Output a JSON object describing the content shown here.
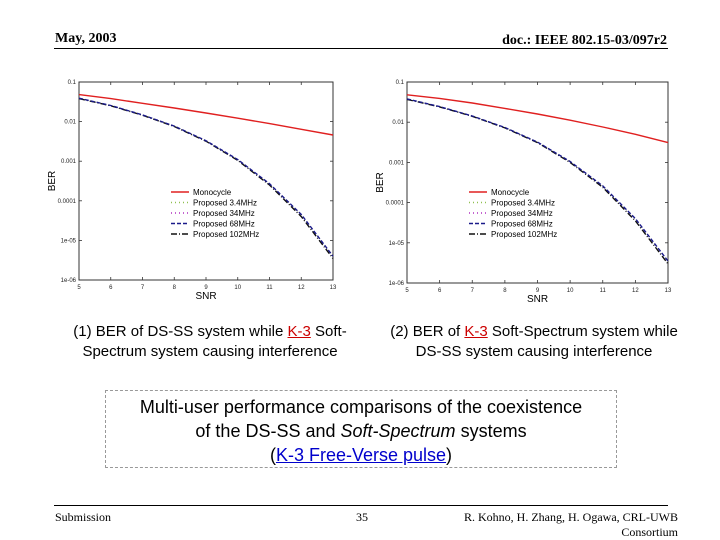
{
  "header": {
    "date": "May, 2003",
    "doc": "doc.: IEEE 802.15-03/097r2"
  },
  "captions": [
    {
      "num": "(1) BER of DS-SS system while ",
      "ref": "K-3",
      "rest_line1": " Soft-",
      "line2": "Spectrum system causing interference"
    },
    {
      "num": "(2) BER of ",
      "ref": "K-3",
      "rest_line1": " Soft-Spectrum system while",
      "line2": "DS-SS system causing interference"
    }
  ],
  "note": {
    "line1": "Multi-user performance comparisons of the coexistence",
    "line2a": "of the DS-SS and ",
    "line2b": "Soft-Spectrum",
    "line2c": " systems",
    "open": "(",
    "link": "K-3 Free-Verse pulse",
    "close": ")"
  },
  "footer": {
    "left": "Submission",
    "page": "35",
    "right_line1": "R. Kohno, H. Zhang, H. Ogawa, CRL-UWB",
    "right_line2": "Consortium"
  },
  "colors": {
    "monocycle": "#e02020",
    "p34": "#90c050",
    "p3434": "#b030c0",
    "p68": "#1a1a8a",
    "p102": "#111111"
  },
  "chart_data": [
    {
      "type": "line",
      "title": "",
      "xlabel": "SNR",
      "ylabel": "BER",
      "xlim": [
        5,
        13
      ],
      "ylim": [
        1e-06,
        0.1
      ],
      "yscale": "log",
      "x_ticks": [
        "5",
        "6",
        "7",
        "8",
        "9",
        "10",
        "11",
        "12",
        "13"
      ],
      "y_ticks": [
        "0.1",
        "0.01",
        "0.001",
        "0.0001",
        "1e-05",
        "1e-06"
      ],
      "legend": [
        "Monocycle",
        "Proposed 3.4MHz",
        "Proposed 34MHz",
        "Proposed 68MHz",
        "Proposed 102MHz"
      ],
      "series": [
        {
          "name": "Monocycle",
          "color_key": "monocycle",
          "dash": "",
          "x": [
            5,
            6,
            7,
            8,
            9,
            10,
            11,
            12,
            13
          ],
          "y": [
            0.048,
            0.038,
            0.029,
            0.022,
            0.0165,
            0.0122,
            0.0089,
            0.0064,
            0.0046
          ]
        },
        {
          "name": "Proposed 102MHz",
          "color_key": "p102",
          "dash": "6,2,1,2",
          "x": [
            5,
            6,
            7,
            8,
            9,
            10,
            11,
            12,
            13
          ],
          "y": [
            0.038,
            0.025,
            0.0145,
            0.0075,
            0.0032,
            0.00105,
            0.00025,
            4e-05,
            3.5e-06
          ]
        },
        {
          "name": "Proposed 68MHz",
          "color_key": "p68",
          "dash": "4,2",
          "x": [
            5,
            6,
            7,
            8,
            9,
            10,
            11,
            12,
            13
          ],
          "y": [
            0.039,
            0.0255,
            0.0148,
            0.0077,
            0.0033,
            0.0011,
            0.00027,
            4.5e-05,
            4e-06
          ]
        }
      ]
    },
    {
      "type": "line",
      "title": "",
      "xlabel": "SNR",
      "ylabel": "BER",
      "xlim": [
        5,
        13
      ],
      "ylim": [
        1e-06,
        0.1
      ],
      "yscale": "log",
      "x_ticks": [
        "5",
        "6",
        "7",
        "8",
        "9",
        "10",
        "11",
        "12",
        "13"
      ],
      "y_ticks": [
        "0.1",
        "0.01",
        "0.001",
        "0.0001",
        "1e-05",
        "1e-06"
      ],
      "legend": [
        "Monocycle",
        "Proposed 3.4MHz",
        "Proposed 34MHz",
        "Proposed 68MHz",
        "Proposed 102MHz"
      ],
      "series": [
        {
          "name": "Monocycle",
          "color_key": "monocycle",
          "dash": "",
          "x": [
            5,
            6,
            7,
            8,
            9,
            10,
            11,
            12,
            13
          ],
          "y": [
            0.048,
            0.039,
            0.03,
            0.022,
            0.016,
            0.0112,
            0.0076,
            0.005,
            0.0031
          ]
        },
        {
          "name": "Proposed 102MHz",
          "color_key": "p102",
          "dash": "6,2,1,2",
          "x": [
            5,
            6,
            7,
            8,
            9,
            10,
            11,
            12,
            13
          ],
          "y": [
            0.037,
            0.024,
            0.014,
            0.0072,
            0.0031,
            0.001,
            0.00024,
            3.5e-05,
            3e-06
          ]
        },
        {
          "name": "Proposed 68MHz",
          "color_key": "p68",
          "dash": "4,2",
          "x": [
            5,
            6,
            7,
            8,
            9,
            10,
            11,
            12,
            13
          ],
          "y": [
            0.038,
            0.0245,
            0.0143,
            0.0074,
            0.0032,
            0.00105,
            0.00026,
            4e-05,
            3.5e-06
          ]
        }
      ]
    }
  ]
}
